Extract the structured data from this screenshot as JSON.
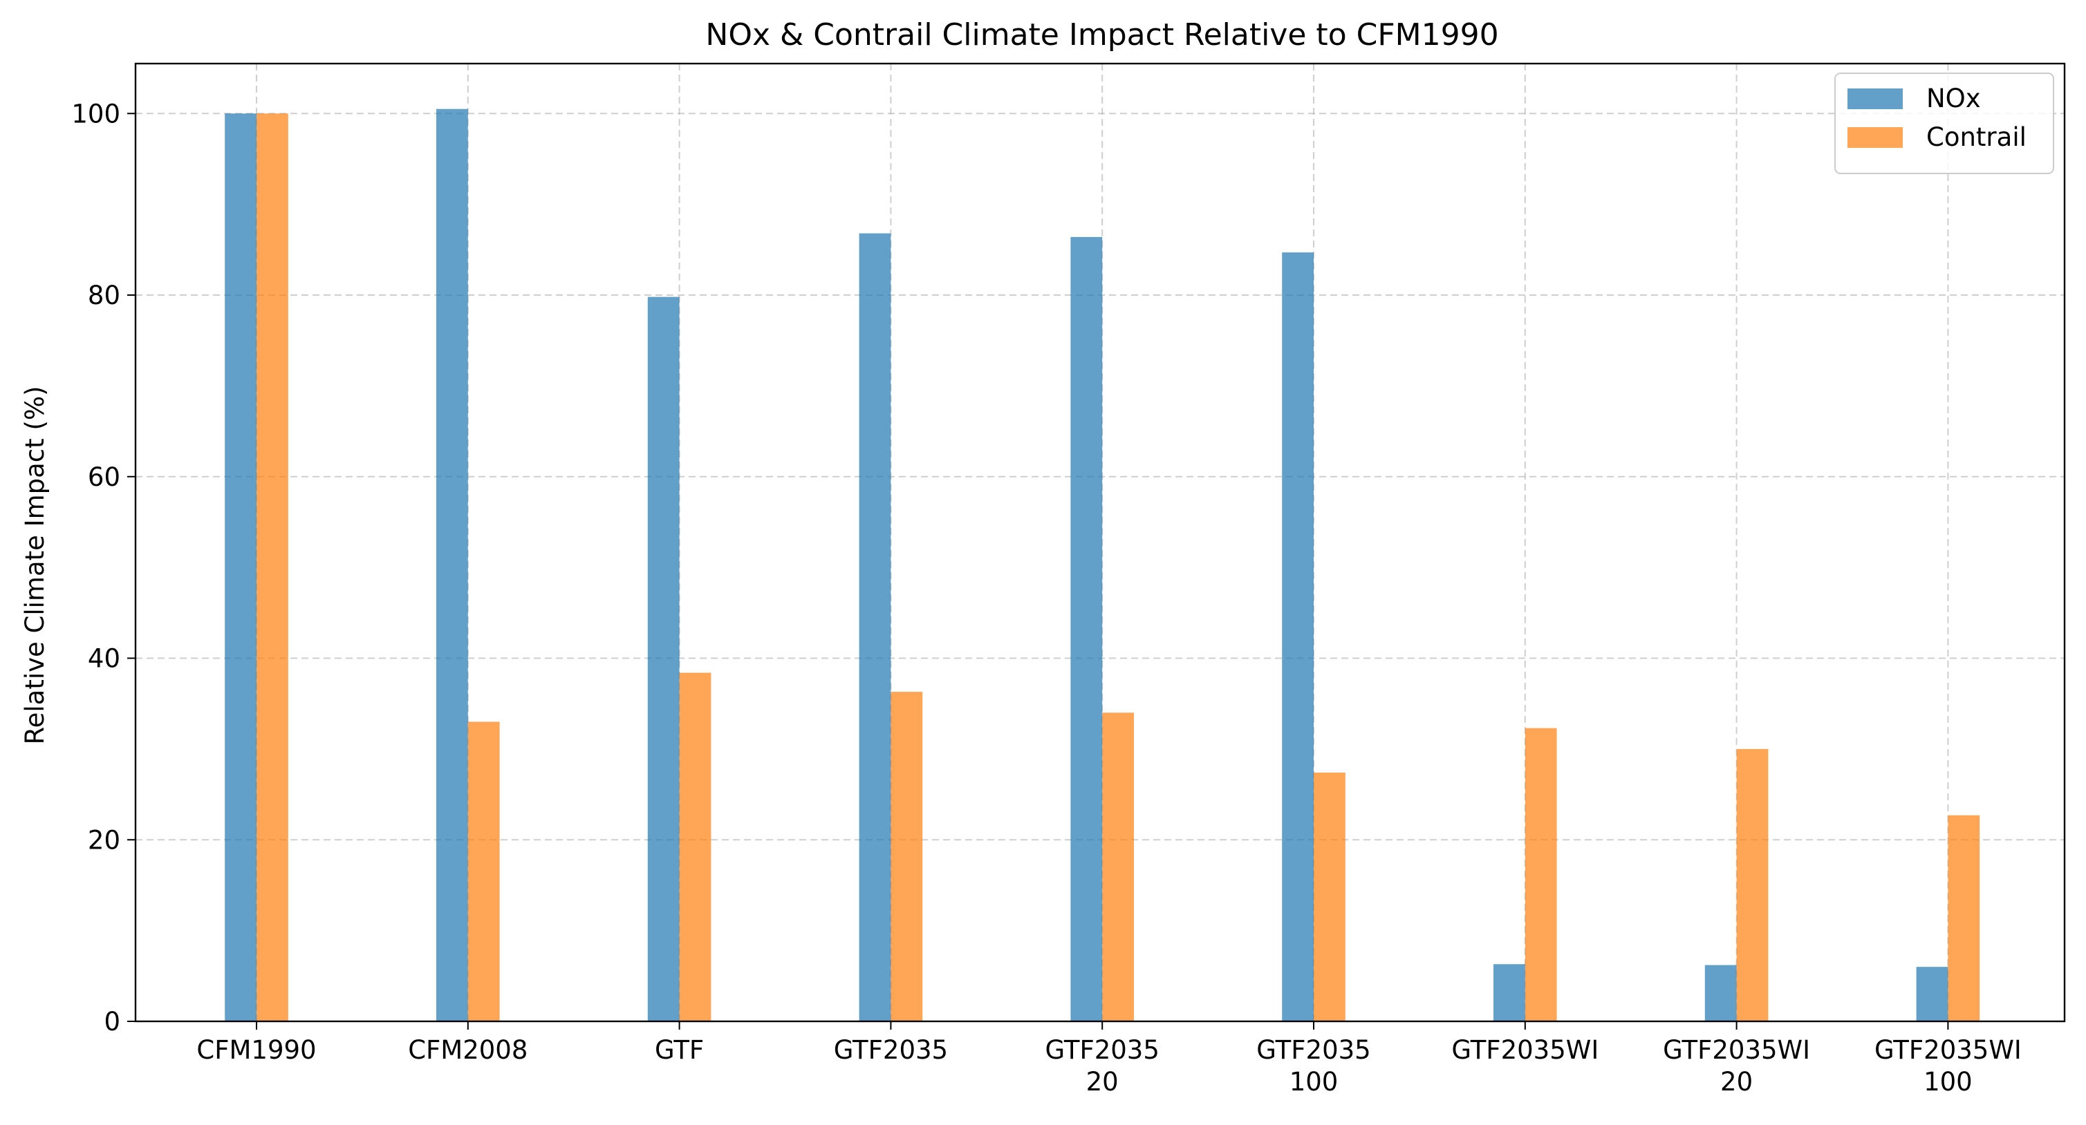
{
  "chart_data": {
    "type": "bar",
    "title": "NOx & Contrail Climate Impact Relative to CFM1990",
    "xlabel": "",
    "ylabel": "Relative Climate Impact (%)",
    "ylim": [
      0,
      105.5
    ],
    "yticks": [
      0,
      20,
      40,
      60,
      80,
      100
    ],
    "grid": true,
    "legend_position": "top-right",
    "categories": [
      [
        "CFM1990"
      ],
      [
        "CFM2008"
      ],
      [
        "GTF"
      ],
      [
        "GTF2035"
      ],
      [
        "GTF2035",
        "20"
      ],
      [
        "GTF2035",
        "100"
      ],
      [
        "GTF2035WI"
      ],
      [
        "GTF2035WI",
        "20"
      ],
      [
        "GTF2035WI",
        "100"
      ]
    ],
    "series": [
      {
        "name": "NOx",
        "color": "#1f77b4",
        "values": [
          100,
          100.5,
          79.8,
          86.8,
          86.4,
          84.7,
          6.3,
          6.2,
          6.0
        ]
      },
      {
        "name": "Contrail",
        "color": "#ff7f0e",
        "values": [
          100,
          33.0,
          38.4,
          36.3,
          34.0,
          27.4,
          32.3,
          30.0,
          22.7
        ]
      }
    ]
  }
}
